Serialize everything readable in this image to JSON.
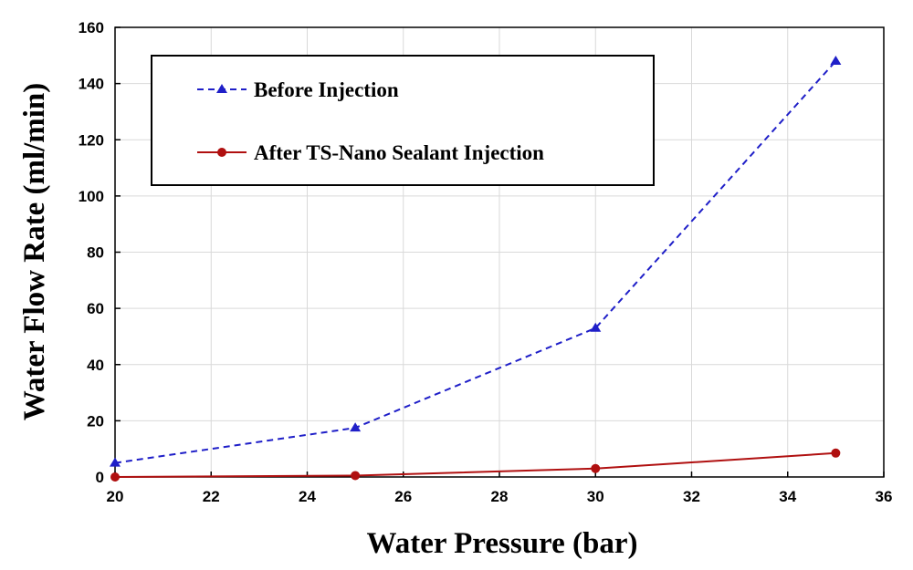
{
  "chart_data": {
    "type": "line",
    "xlabel": "Water Pressure (bar)",
    "ylabel": "Water Flow Rate (ml/min)",
    "xlim": [
      20,
      36
    ],
    "ylim": [
      0,
      160
    ],
    "xticks": [
      20,
      22,
      24,
      26,
      28,
      30,
      32,
      34,
      36
    ],
    "yticks": [
      0,
      20,
      40,
      60,
      80,
      100,
      120,
      140,
      160
    ],
    "grid": true,
    "legend_position": "top-left",
    "series": [
      {
        "name": "Before Injection",
        "color": "#1f1fc8",
        "line_style": "dashed",
        "marker": "triangle",
        "x": [
          20,
          25,
          30,
          35
        ],
        "y": [
          5,
          17.5,
          53,
          148
        ]
      },
      {
        "name": "After TS-Nano Sealant Injection",
        "color": "#b01010",
        "line_style": "solid",
        "marker": "circle",
        "x": [
          20,
          25,
          30,
          35
        ],
        "y": [
          0,
          0.5,
          3,
          8.5
        ]
      }
    ]
  }
}
